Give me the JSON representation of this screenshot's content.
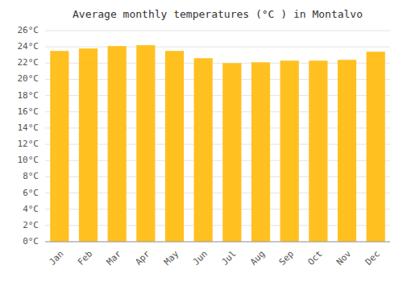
{
  "chart_data": {
    "type": "bar",
    "title": "Average monthly temperatures (°C ) in Montalvo",
    "categories": [
      "Jan",
      "Feb",
      "Mar",
      "Apr",
      "May",
      "Jun",
      "Jul",
      "Aug",
      "Sep",
      "Oct",
      "Nov",
      "Dec"
    ],
    "values": [
      23.5,
      23.8,
      24.1,
      24.2,
      23.5,
      22.6,
      22.0,
      22.1,
      22.3,
      22.3,
      22.4,
      23.4
    ],
    "color": "#FFC020",
    "ylim": [
      0,
      26
    ],
    "yticks": [
      {
        "value": 0,
        "label": "0°C"
      },
      {
        "value": 2,
        "label": "2°C"
      },
      {
        "value": 4,
        "label": "4°C"
      },
      {
        "value": 6,
        "label": "6°C"
      },
      {
        "value": 8,
        "label": "8°C"
      },
      {
        "value": 10,
        "label": "10°C"
      },
      {
        "value": 12,
        "label": "12°C"
      },
      {
        "value": 14,
        "label": "14°C"
      },
      {
        "value": 16,
        "label": "16°C"
      },
      {
        "value": 18,
        "label": "18°C"
      },
      {
        "value": 20,
        "label": "20°C"
      },
      {
        "value": 22,
        "label": "22°C"
      },
      {
        "value": 24,
        "label": "24°C"
      },
      {
        "value": 26,
        "label": "26°C"
      }
    ],
    "grid": true
  }
}
